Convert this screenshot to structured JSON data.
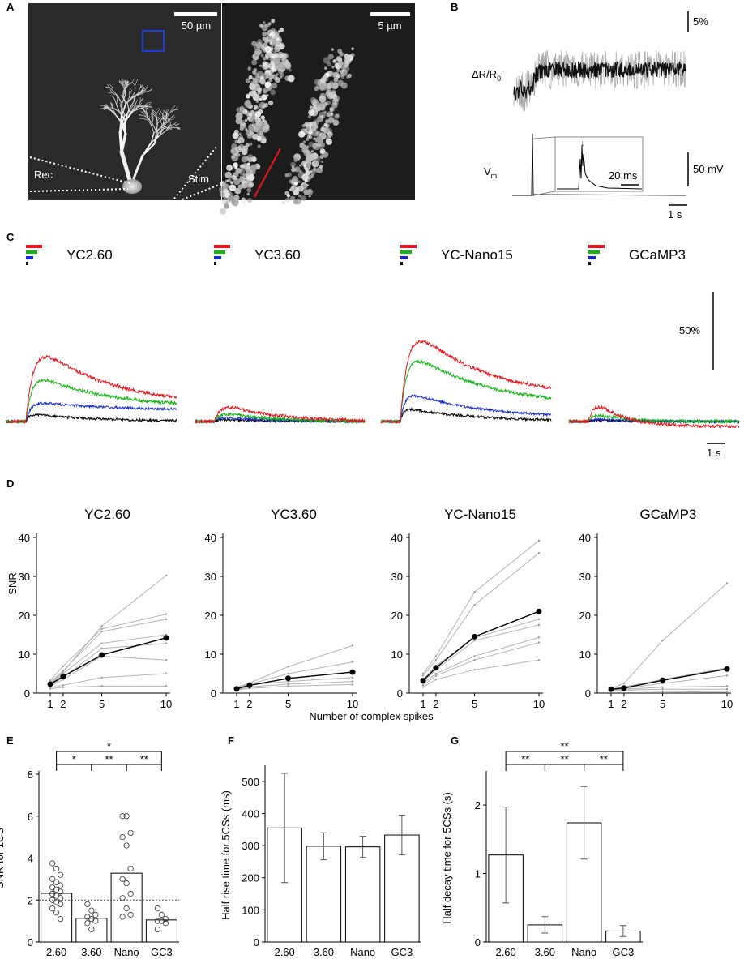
{
  "panels": {
    "A": {
      "letter": "A",
      "scale_left": "50 µm",
      "scale_right": "5 µm",
      "rec_label": "Rec",
      "stim_label": "Stim"
    },
    "B": {
      "letter": "B",
      "trace_label": "ΔR/R",
      "trace_label_sub": "0",
      "vm_label": "V",
      "vm_label_sub": "m",
      "scale_pct": "5%",
      "scale_mv": "50 mV",
      "inset_scale": "20 ms",
      "time_scale": "1 s"
    },
    "C": {
      "letter": "C",
      "scale_pct": "50%",
      "time_scale": "1 s",
      "indicators": [
        "YC2.60",
        "YC3.60",
        "YC-Nano15",
        "GCaMP3"
      ]
    },
    "D": {
      "letter": "D",
      "ylabel": "SNR",
      "xlabel": "Number of complex spikes"
    },
    "E": {
      "letter": "E"
    },
    "F": {
      "letter": "F"
    },
    "G": {
      "letter": "G"
    }
  },
  "colors": {
    "ten_cs": "#e8141c",
    "five_cs": "#14b414",
    "two_cs": "#1428d2",
    "one_cs": "#000000",
    "individual": "#b4b4b4"
  },
  "chart_data": [
    {
      "panel": "C",
      "type": "line",
      "series_colors": [
        "#000000",
        "#1428d2",
        "#14b414",
        "#e8141c"
      ],
      "traces": [
        {
          "indicator": "YC2.60",
          "peaks": [
            10,
            26,
            66,
            110
          ],
          "decay": [
            0.38,
            0.4,
            0.38,
            0.4
          ],
          "plateau": [
            0,
            14,
            18,
            20
          ]
        },
        {
          "indicator": "YC3.60",
          "peaks": [
            3,
            6,
            14,
            28
          ],
          "decay": [
            0.3,
            0.3,
            0.26,
            0.28
          ],
          "plateau": [
            0,
            0,
            0,
            0
          ]
        },
        {
          "indicator": "YC-Nano15",
          "peaks": [
            18,
            40,
            95,
            135
          ],
          "decay": [
            0.4,
            0.42,
            0.45,
            0.4
          ],
          "plateau": [
            0,
            4,
            18,
            30
          ]
        },
        {
          "indicator": "GCaMP3",
          "peaks": [
            2,
            4,
            14,
            40
          ],
          "decay": [
            0.2,
            0.2,
            0.15,
            0.15
          ],
          "plateau": [
            0,
            0,
            0,
            -6
          ]
        }
      ]
    },
    {
      "panel": "D",
      "type": "line",
      "x": [
        1,
        2,
        5,
        10
      ],
      "ylim": [
        0,
        40
      ],
      "yticks": [
        0,
        10,
        20,
        30,
        40
      ],
      "subplots": [
        {
          "title": "YC2.60",
          "mean": [
            2.3,
            4.3,
            9.8,
            14.2
          ],
          "individuals": [
            [
              2.5,
              5.5,
              17.2,
              30.2
            ],
            [
              3.3,
              6.9,
              16.5,
              20.3
            ],
            [
              2.8,
              5.8,
              15.8,
              19.0
            ],
            [
              2.4,
              5.0,
              12.8,
              15.0
            ],
            [
              2.0,
              4.0,
              11.5,
              12.8
            ],
            [
              1.8,
              3.5,
              9.5,
              8.5
            ],
            [
              1.4,
              2.0,
              4.0,
              5.0
            ],
            [
              1.1,
              1.5,
              1.8,
              1.8
            ]
          ]
        },
        {
          "title": "YC3.60",
          "mean": [
            1.1,
            2.0,
            3.8,
            5.4
          ],
          "individuals": [
            [
              1.5,
              2.6,
              6.8,
              12.2
            ],
            [
              1.3,
              2.3,
              5.0,
              8.0
            ],
            [
              1.1,
              2.1,
              3.0,
              4.0
            ],
            [
              0.9,
              1.6,
              2.3,
              3.0
            ],
            [
              0.8,
              1.2,
              1.8,
              2.2
            ]
          ]
        },
        {
          "title": "YC-Nano15",
          "mean": [
            3.2,
            6.5,
            14.5,
            21.0
          ],
          "individuals": [
            [
              5.0,
              9.5,
              26.0,
              39.2
            ],
            [
              4.5,
              8.5,
              22.7,
              36.0
            ],
            [
              3.5,
              7.0,
              14.2,
              19.0
            ],
            [
              3.0,
              6.0,
              13.5,
              17.5
            ],
            [
              2.5,
              5.0,
              9.5,
              14.3
            ],
            [
              2.0,
              4.5,
              8.5,
              13.0
            ],
            [
              1.5,
              3.5,
              6.0,
              8.5
            ]
          ]
        },
        {
          "title": "GCaMP3",
          "mean": [
            1.0,
            1.3,
            3.3,
            6.2
          ],
          "individuals": [
            [
              1.2,
              2.5,
              13.5,
              28.2
            ],
            [
              1.1,
              1.6,
              3.5,
              6.5
            ],
            [
              0.9,
              1.2,
              2.5,
              4.5
            ],
            [
              0.8,
              1.0,
              1.5,
              1.8
            ],
            [
              0.7,
              0.8,
              1.0,
              1.0
            ],
            [
              0.6,
              0.6,
              0.4,
              0.2
            ]
          ]
        }
      ]
    },
    {
      "panel": "E",
      "type": "bar",
      "categories": [
        "2.60",
        "3.60",
        "Nano",
        "GC3"
      ],
      "values": [
        2.32,
        1.13,
        3.28,
        1.05
      ],
      "ylabel": "SNR for 1CS",
      "ylim": [
        0,
        8
      ],
      "yticks": [
        0,
        2,
        4,
        6,
        8
      ],
      "reference_line": 2,
      "points": [
        [
          3.75,
          3.5,
          3.2,
          3.0,
          2.85,
          2.7,
          2.6,
          2.5,
          2.4,
          2.3,
          2.2,
          2.1,
          2.0,
          1.9,
          1.8,
          1.6,
          1.4,
          1.1
        ],
        [
          1.8,
          1.5,
          1.3,
          1.2,
          1.1,
          1.0,
          0.9,
          0.6
        ],
        [
          6.0,
          6.0,
          5.2,
          5.0,
          4.6,
          3.5,
          3.0,
          2.8,
          2.3,
          2.1,
          1.6,
          1.3,
          1.2
        ],
        [
          1.6,
          1.3,
          1.1,
          1.0,
          1.0,
          0.9,
          0.6
        ]
      ],
      "significance": [
        {
          "from": 0,
          "to": 1,
          "label": "*"
        },
        {
          "from": 1,
          "to": 2,
          "label": "**"
        },
        {
          "from": 2,
          "to": 3,
          "label": "**"
        },
        {
          "from": 0,
          "to": 3,
          "label": "*"
        }
      ]
    },
    {
      "panel": "F",
      "type": "bar",
      "categories": [
        "2.60",
        "3.60",
        "Nano",
        "GC3"
      ],
      "values": [
        355,
        298,
        296,
        333
      ],
      "errors": [
        170,
        42,
        33,
        62
      ],
      "ylabel": "Half rise time for 5CSs (ms)",
      "ylim": [
        0,
        540
      ],
      "yticks": [
        0,
        100,
        200,
        300,
        400,
        500
      ]
    },
    {
      "panel": "G",
      "type": "bar",
      "categories": [
        "2.60",
        "3.60",
        "Nano",
        "GC3"
      ],
      "values": [
        1.27,
        0.25,
        1.74,
        0.16
      ],
      "errors": [
        0.7,
        0.12,
        0.53,
        0.08
      ],
      "ylabel": "Half decay time for 5CSs (s)",
      "ylim": [
        0,
        2.45
      ],
      "yticks": [
        0,
        1,
        2
      ],
      "significance": [
        {
          "from": 0,
          "to": 1,
          "label": "**"
        },
        {
          "from": 1,
          "to": 2,
          "label": "**"
        },
        {
          "from": 2,
          "to": 3,
          "label": "**"
        },
        {
          "from": 0,
          "to": 3,
          "label": "**"
        }
      ]
    }
  ]
}
